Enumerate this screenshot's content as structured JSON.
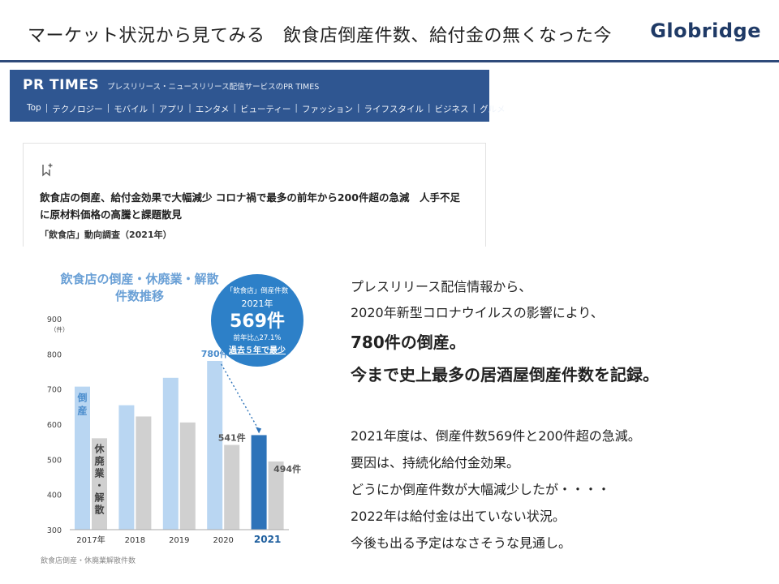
{
  "header": {
    "title": "マーケット状況から見てみる　飲食店倒産件数、給付金の無くなった今",
    "logo": "Globridge"
  },
  "pr_times": {
    "logo": "PR TIMES",
    "tagline": "プレスリリース・ニュースリリース配信サービスのPR TIMES",
    "nav": [
      "Top",
      "テクノロジー",
      "モバイル",
      "アプリ",
      "エンタメ",
      "ビューティー",
      "ファッション",
      "ライフスタイル",
      "ビジネス",
      "グルメ"
    ]
  },
  "article": {
    "bookmark_icon": "bookmark-plus-icon",
    "headline": "飲食店の倒産、給付金効果で大幅減少 コロナ禍で最多の前年から200件超の急減　人手不足に原材料価格の高騰と課題散見",
    "subtitle": "「飲食店」動向調査（2021年）"
  },
  "chart": {
    "title_line1": "飲食店の倒産・休廃業・解散",
    "title_line2": "件数推移",
    "y_unit": "（件）",
    "badge": {
      "line1": "「飲食店」倒産件数",
      "line2": "2021年",
      "value": "569件",
      "change": "前年比△27.1%",
      "note": "過去５年で最少"
    },
    "label_bankruptcy": "倒産",
    "label_closure": "休廃業・解散",
    "source": "飲食店倒産・休廃業解散件数",
    "colors": {
      "bankruptcy": "#b9d6f2",
      "closure": "#d0d0d0",
      "highlight": "#2d73b9",
      "badge": "#2d80c8"
    }
  },
  "chart_data": {
    "type": "bar",
    "categories": [
      "2017年",
      "2018",
      "2019",
      "2020",
      "2021"
    ],
    "series": [
      {
        "name": "倒産",
        "values": [
          707,
          654,
          732,
          780,
          569
        ]
      },
      {
        "name": "休廃業・解散",
        "values": [
          560,
          622,
          605,
          541,
          494
        ]
      }
    ],
    "data_labels": [
      {
        "category": "2020",
        "series": "倒産",
        "text": "780件"
      },
      {
        "category": "2020",
        "series": "休廃業・解散",
        "text": "541件"
      },
      {
        "category": "2021",
        "series": "休廃業・解散",
        "text": "494件"
      }
    ],
    "yticks": [
      300,
      400,
      500,
      600,
      700,
      800,
      900
    ],
    "ylim": [
      300,
      900
    ],
    "grid": false
  },
  "text": {
    "line1": "プレスリリース配信情報から、",
    "line2": "2020年新型コロナウイルスの影響により、",
    "line3": "780件の倒産。",
    "line4": "今まで史上最多の居酒屋倒産件数を記録。",
    "line5": "2021年度は、倒産件数569件と200件超の急減。",
    "line6": "要因は、持続化給付金効果。",
    "line7": "どうにか倒産件数が大幅減少したが・・・・",
    "line8": "2022年は給付金は出ていない状況。",
    "line9": "今後も出る予定はなさそうな見通し。"
  }
}
